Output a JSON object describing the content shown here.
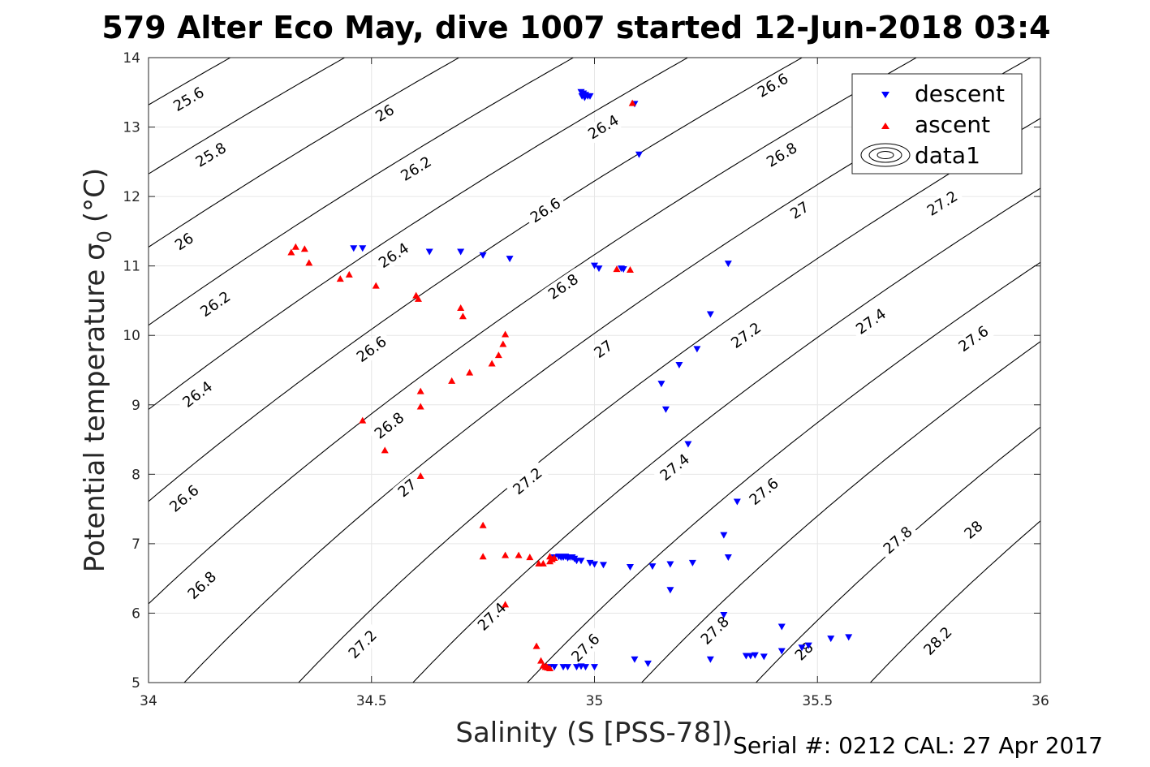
{
  "chart_data": {
    "type": "scatter",
    "title": "579 Alter Eco May, dive 1007 started 12-Jun-2018 03:4",
    "xlabel": "Salinity (S [PSS-78])",
    "ylabel_main": "Potential temperature σ",
    "ylabel_sub": "0",
    "ylabel_unit": "(°C)",
    "xlim": [
      34,
      36
    ],
    "ylim": [
      5,
      14
    ],
    "xticks": [
      34,
      34.5,
      35,
      35.5,
      36
    ],
    "xtick_labels": [
      "34",
      "34.5",
      "35",
      "35.5",
      "36"
    ],
    "yticks": [
      5,
      6,
      7,
      8,
      9,
      10,
      11,
      12,
      13,
      14
    ],
    "ytick_labels": [
      "5",
      "6",
      "7",
      "8",
      "9",
      "10",
      "11",
      "12",
      "13",
      "14"
    ],
    "grid": true,
    "legend_position": "top-right",
    "footer": "Serial #: 0212  CAL: 27 Apr 2017",
    "contours": {
      "levels": [
        25.6,
        25.8,
        26,
        26.2,
        26.4,
        26.6,
        26.8,
        27,
        27.2,
        27.4,
        27.6,
        27.8,
        28,
        28.2
      ],
      "labels": [
        {
          "text": "25.6",
          "s": 34.09,
          "t": 13.4
        },
        {
          "text": "25.8",
          "s": 34.14,
          "t": 12.6
        },
        {
          "text": "26",
          "s": 34.53,
          "t": 13.2
        },
        {
          "text": "26",
          "s": 34.08,
          "t": 11.35
        },
        {
          "text": "26.2",
          "s": 34.6,
          "t": 12.4
        },
        {
          "text": "26.2",
          "s": 34.15,
          "t": 10.45
        },
        {
          "text": "26.4",
          "s": 35.02,
          "t": 13.0
        },
        {
          "text": "26.4",
          "s": 34.55,
          "t": 11.15
        },
        {
          "text": "26.4",
          "s": 34.11,
          "t": 9.15
        },
        {
          "text": "26.6",
          "s": 35.4,
          "t": 13.6
        },
        {
          "text": "26.6",
          "s": 34.89,
          "t": 11.8
        },
        {
          "text": "26.6",
          "s": 34.5,
          "t": 9.8
        },
        {
          "text": "26.6",
          "s": 34.08,
          "t": 7.65
        },
        {
          "text": "26.8",
          "s": 35.42,
          "t": 12.6
        },
        {
          "text": "26.8",
          "s": 34.93,
          "t": 10.7
        },
        {
          "text": "26.8",
          "s": 34.54,
          "t": 8.7
        },
        {
          "text": "26.8",
          "s": 34.12,
          "t": 6.4
        },
        {
          "text": "27",
          "s": 35.46,
          "t": 11.8
        },
        {
          "text": "27",
          "s": 35.02,
          "t": 9.8
        },
        {
          "text": "27",
          "s": 34.58,
          "t": 7.8
        },
        {
          "text": "27.2",
          "s": 35.78,
          "t": 11.9
        },
        {
          "text": "27.2",
          "s": 35.34,
          "t": 10.0
        },
        {
          "text": "27.2",
          "s": 34.85,
          "t": 7.9
        },
        {
          "text": "27.2",
          "s": 34.48,
          "t": 5.55
        },
        {
          "text": "27.4",
          "s": 35.62,
          "t": 10.2
        },
        {
          "text": "27.4",
          "s": 35.18,
          "t": 8.1
        },
        {
          "text": "27.4",
          "s": 34.77,
          "t": 5.95
        },
        {
          "text": "27.6",
          "s": 35.85,
          "t": 9.95
        },
        {
          "text": "27.6",
          "s": 35.38,
          "t": 7.75
        },
        {
          "text": "27.6",
          "s": 34.98,
          "t": 5.5
        },
        {
          "text": "27.8",
          "s": 35.68,
          "t": 7.05
        },
        {
          "text": "27.8",
          "s": 35.27,
          "t": 5.75
        },
        {
          "text": "28",
          "s": 35.85,
          "t": 7.2
        },
        {
          "text": "28",
          "s": 35.47,
          "t": 5.45
        },
        {
          "text": "28.2",
          "s": 35.77,
          "t": 5.6
        }
      ]
    },
    "series": [
      {
        "name": "descent",
        "color": "#0000ff",
        "marker": "triangle-down",
        "points": [
          [
            34.97,
            13.5
          ],
          [
            34.975,
            13.48
          ],
          [
            34.98,
            13.46
          ],
          [
            34.972,
            13.44
          ],
          [
            34.985,
            13.44
          ],
          [
            34.978,
            13.42
          ],
          [
            34.99,
            13.44
          ],
          [
            35.09,
            13.33
          ],
          [
            35.1,
            12.6
          ],
          [
            34.46,
            11.25
          ],
          [
            34.48,
            11.25
          ],
          [
            34.63,
            11.2
          ],
          [
            34.7,
            11.2
          ],
          [
            34.75,
            11.15
          ],
          [
            34.81,
            11.1
          ],
          [
            35.0,
            11.0
          ],
          [
            35.01,
            10.96
          ],
          [
            35.06,
            10.96
          ],
          [
            35.065,
            10.95
          ],
          [
            35.3,
            11.03
          ],
          [
            35.26,
            10.3
          ],
          [
            35.23,
            9.8
          ],
          [
            35.19,
            9.57
          ],
          [
            35.15,
            9.3
          ],
          [
            35.16,
            8.93
          ],
          [
            35.21,
            8.43
          ],
          [
            35.32,
            7.6
          ],
          [
            35.29,
            7.12
          ],
          [
            35.3,
            6.8
          ],
          [
            34.91,
            6.8
          ],
          [
            34.92,
            6.81
          ],
          [
            34.925,
            6.8
          ],
          [
            34.93,
            6.8
          ],
          [
            34.935,
            6.81
          ],
          [
            34.94,
            6.79
          ],
          [
            34.945,
            6.8
          ],
          [
            34.95,
            6.8
          ],
          [
            34.955,
            6.78
          ],
          [
            34.96,
            6.75
          ],
          [
            34.97,
            6.75
          ],
          [
            34.99,
            6.72
          ],
          [
            35.0,
            6.7
          ],
          [
            35.02,
            6.69
          ],
          [
            35.08,
            6.66
          ],
          [
            35.13,
            6.67
          ],
          [
            35.17,
            6.7
          ],
          [
            35.22,
            6.72
          ],
          [
            35.17,
            6.33
          ],
          [
            35.29,
            5.97
          ],
          [
            35.42,
            5.8
          ],
          [
            35.57,
            5.65
          ],
          [
            35.53,
            5.63
          ],
          [
            35.48,
            5.53
          ],
          [
            35.465,
            5.5
          ],
          [
            35.42,
            5.45
          ],
          [
            35.35,
            5.38
          ],
          [
            35.36,
            5.39
          ],
          [
            35.38,
            5.37
          ],
          [
            35.34,
            5.38
          ],
          [
            35.26,
            5.33
          ],
          [
            35.09,
            5.33
          ],
          [
            35.12,
            5.27
          ],
          [
            34.9,
            5.22
          ],
          [
            34.91,
            5.22
          ],
          [
            34.93,
            5.22
          ],
          [
            34.94,
            5.22
          ],
          [
            34.96,
            5.22
          ],
          [
            34.97,
            5.23
          ],
          [
            34.98,
            5.22
          ],
          [
            35.0,
            5.22
          ]
        ]
      },
      {
        "name": "ascent",
        "color": "#ff0000",
        "marker": "triangle-up",
        "points": [
          [
            34.32,
            11.2
          ],
          [
            34.33,
            11.28
          ],
          [
            34.35,
            11.25
          ],
          [
            34.36,
            11.05
          ],
          [
            34.43,
            10.82
          ],
          [
            34.45,
            10.88
          ],
          [
            34.51,
            10.72
          ],
          [
            34.6,
            10.58
          ],
          [
            34.605,
            10.53
          ],
          [
            34.7,
            10.4
          ],
          [
            34.705,
            10.28
          ],
          [
            34.8,
            10.02
          ],
          [
            34.795,
            9.88
          ],
          [
            34.785,
            9.72
          ],
          [
            34.77,
            9.6
          ],
          [
            34.72,
            9.47
          ],
          [
            34.68,
            9.35
          ],
          [
            34.61,
            9.2
          ],
          [
            34.61,
            8.98
          ],
          [
            34.48,
            8.78
          ],
          [
            34.53,
            8.35
          ],
          [
            34.61,
            7.98
          ],
          [
            34.75,
            7.27
          ],
          [
            34.75,
            6.82
          ],
          [
            34.8,
            6.84
          ],
          [
            34.83,
            6.84
          ],
          [
            34.855,
            6.81
          ],
          [
            34.875,
            6.72
          ],
          [
            34.885,
            6.72
          ],
          [
            34.9,
            6.82
          ],
          [
            34.905,
            6.78
          ],
          [
            34.91,
            6.8
          ],
          [
            34.9,
            6.75
          ],
          [
            35.05,
            10.96
          ],
          [
            35.08,
            10.95
          ],
          [
            35.085,
            13.35
          ],
          [
            34.8,
            6.13
          ],
          [
            34.87,
            5.53
          ],
          [
            34.88,
            5.32
          ],
          [
            34.885,
            5.25
          ],
          [
            34.89,
            5.23
          ],
          [
            34.895,
            5.22
          ],
          [
            34.9,
            5.21
          ],
          [
            34.892,
            5.24
          ]
        ]
      }
    ],
    "legend": [
      {
        "label": "descent",
        "marker": "triangle-down",
        "color": "#0000ff"
      },
      {
        "label": "ascent",
        "marker": "triangle-up",
        "color": "#ff0000"
      },
      {
        "label": "data1",
        "marker": "contour",
        "color": "#000000"
      }
    ]
  }
}
